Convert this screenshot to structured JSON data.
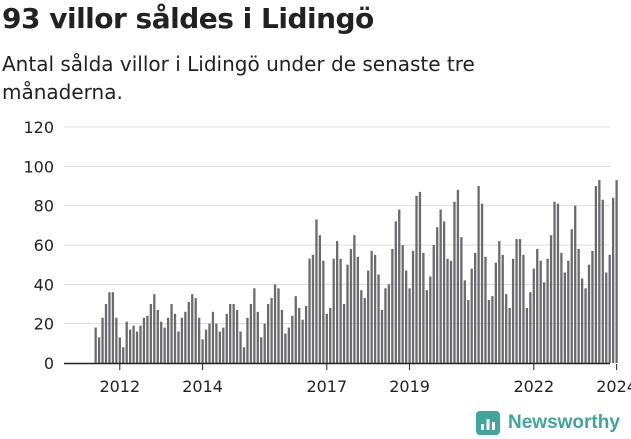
{
  "header": {
    "title": "93 villor såldes i Lidingö",
    "subtitle": "Antal sålda villor i Lidingö under de senaste tre månaderna."
  },
  "brand": {
    "name": "Newsworthy",
    "icon": "bar-chart-logo-icon",
    "color": "#3ea69b"
  },
  "colors": {
    "bar": "#6b6a6e",
    "highlight": "#2a9d8f",
    "grid": "#dddddd",
    "axis": "#222222"
  },
  "chart_data": {
    "type": "bar",
    "title": "93 villor såldes i Lidingö",
    "subtitle": "Antal sålda villor i Lidingö under de senaste tre månaderna.",
    "xlabel": "",
    "ylabel": "",
    "ylim": [
      0,
      120
    ],
    "yticks": [
      "0",
      "20",
      "40",
      "60",
      "80",
      "100",
      "120"
    ],
    "grid": true,
    "x_start": "2011-06",
    "x_end": "2024-11",
    "xtick_labels": [
      "2012",
      "2014",
      "2017",
      "2019",
      "2022",
      "2024"
    ],
    "xtick_positions": [
      "2012-01",
      "2014-01",
      "2017-01",
      "2019-01",
      "2022-01",
      "2024-01"
    ],
    "highlight_label": "93",
    "highlight_x": "2024-11",
    "highlight_value": 93,
    "values": [
      18,
      13,
      23,
      30,
      36,
      36,
      23,
      13,
      8,
      21,
      17,
      19,
      16,
      19,
      23,
      24,
      30,
      35,
      27,
      21,
      18,
      23,
      30,
      25,
      16,
      23,
      26,
      31,
      35,
      33,
      23,
      12,
      17,
      20,
      26,
      20,
      16,
      18,
      25,
      30,
      30,
      27,
      16,
      8,
      23,
      30,
      38,
      26,
      13,
      20,
      30,
      33,
      40,
      38,
      27,
      15,
      18,
      24,
      34,
      28,
      22,
      29,
      53,
      55,
      73,
      65,
      52,
      25,
      28,
      53,
      62,
      53,
      30,
      50,
      58,
      65,
      54,
      37,
      33,
      47,
      57,
      55,
      45,
      27,
      38,
      40,
      58,
      72,
      78,
      60,
      47,
      38,
      57,
      85,
      87,
      56,
      37,
      44,
      60,
      69,
      78,
      72,
      53,
      52,
      82,
      88,
      64,
      42,
      32,
      48,
      56,
      90,
      81,
      54,
      32,
      34,
      51,
      62,
      55,
      35,
      28,
      53,
      63,
      63,
      55,
      28,
      36,
      48,
      58,
      52,
      41,
      53,
      65,
      82,
      81,
      56,
      46,
      52,
      68,
      80,
      58,
      43,
      38,
      50,
      57,
      90,
      93,
      83,
      46,
      55,
      84,
      93
    ]
  }
}
